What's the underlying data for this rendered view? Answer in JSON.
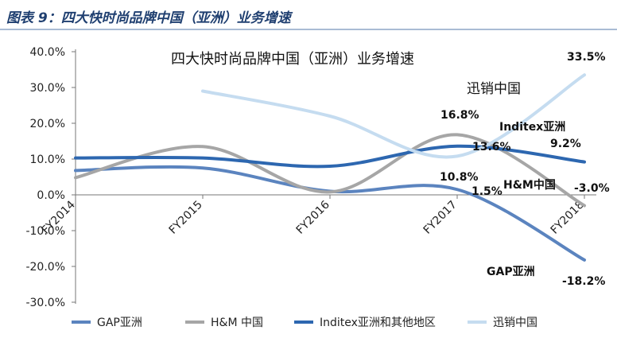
{
  "figure": {
    "title": "图表 9：四大快时尚品牌中国（亚洲）业务增速"
  },
  "chart_data": {
    "type": "line",
    "title": "四大快时尚品牌中国（亚洲）业务增速",
    "categories": [
      "FY2014",
      "FY2015",
      "FY2016",
      "FY2017",
      "FY2018"
    ],
    "y_ticks": [
      "40.0%",
      "30.0%",
      "20.0%",
      "10.0%",
      "0.0%",
      "-10.0%",
      "-20.0%",
      "-30.0%"
    ],
    "ylim": [
      -30,
      40
    ],
    "grid": false,
    "legend_position": "bottom",
    "series": [
      {
        "name": "GAP亚洲",
        "color": "#5b84bf",
        "values": [
          6.8,
          7.5,
          1.0,
          1.5,
          -18.2
        ]
      },
      {
        "name": "H&M 中国",
        "color": "#a6a6a6",
        "values": [
          4.8,
          13.5,
          0.8,
          16.8,
          -3.0
        ]
      },
      {
        "name": "Inditex亚洲和其他地区",
        "color": "#2d67b0",
        "values": [
          10.3,
          10.3,
          8.0,
          13.6,
          9.2
        ]
      },
      {
        "name": "迅销中国",
        "color": "#c5dcf0",
        "values": [
          null,
          29.0,
          22.0,
          10.8,
          33.5
        ]
      }
    ],
    "data_labels": [
      "33.5%",
      "16.8%",
      "13.6%",
      "9.2%",
      "10.8%",
      "1.5%",
      "-3.0%",
      "-18.2%"
    ],
    "series_annotations": [
      "迅销中国",
      "Inditex亚洲",
      "H&M中国",
      "GAP亚洲"
    ]
  }
}
